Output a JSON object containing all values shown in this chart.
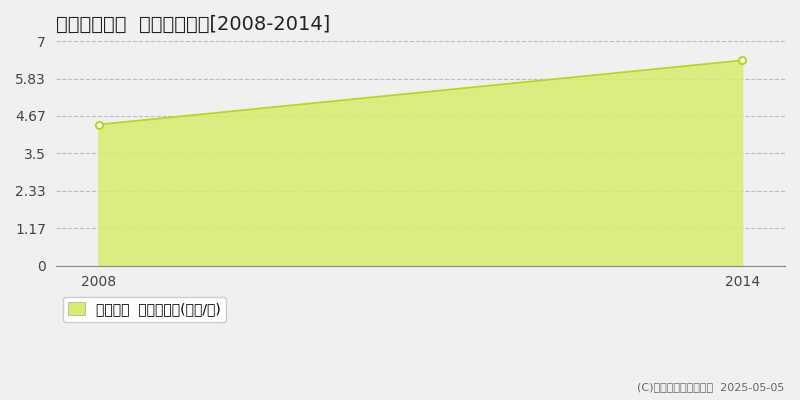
{
  "title": "佐野市七軒町  土地価格推移[2008-2014]",
  "years": [
    2008,
    2014
  ],
  "values": [
    4.4,
    6.4
  ],
  "xlim": [
    2007.6,
    2014.4
  ],
  "ylim": [
    0,
    7
  ],
  "yticks": [
    0,
    1.17,
    2.33,
    3.5,
    4.67,
    5.83,
    7
  ],
  "ytick_labels": [
    "0",
    "1.17",
    "2.33",
    "3.5",
    "4.67",
    "5.83",
    "7"
  ],
  "xticks": [
    2008,
    2014
  ],
  "fill_color": "#d8ed6e",
  "line_color": "#c0d020",
  "marker_color": "#c0d020",
  "bg_color": "#f0f0f0",
  "plot_bg_color": "#f0f0f0",
  "grid_color": "#bbbbbb",
  "legend_label": "土地価格  平均坪単価(万円/坪)",
  "copyright": "(C)土地価格ドットコム  2025-05-05",
  "title_fontsize": 14,
  "tick_fontsize": 10,
  "legend_fontsize": 10,
  "copyright_fontsize": 8
}
